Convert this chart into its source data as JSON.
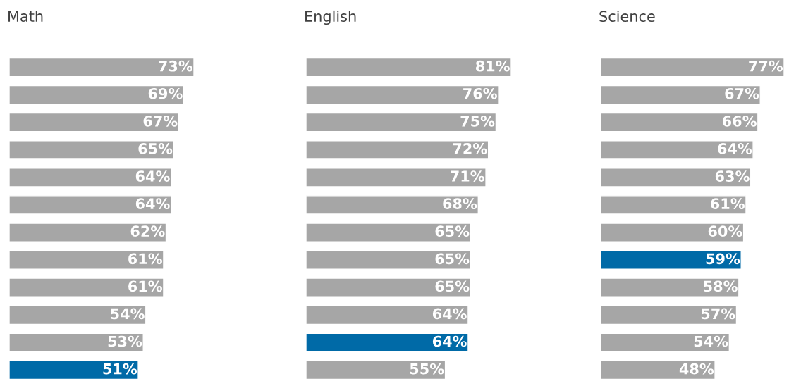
{
  "chart_data": [
    {
      "type": "bar",
      "title": "Math",
      "orientation": "horizontal",
      "data_labels": true,
      "categories": [
        null,
        null,
        null,
        null,
        null,
        null,
        null,
        null,
        null,
        null,
        null,
        null
      ],
      "values": [
        73,
        69,
        67,
        65,
        64,
        64,
        62,
        61,
        61,
        54,
        53,
        51
      ],
      "value_labels": [
        "73%",
        "69%",
        "67%",
        "65%",
        "64%",
        "64%",
        "62%",
        "61%",
        "61%",
        "54%",
        "53%",
        "51%"
      ],
      "colors": [
        "#a6a6a6",
        "#a6a6a6",
        "#a6a6a6",
        "#a6a6a6",
        "#a6a6a6",
        "#a6a6a6",
        "#a6a6a6",
        "#a6a6a6",
        "#a6a6a6",
        "#a6a6a6",
        "#a6a6a6",
        "#006aa7"
      ]
    },
    {
      "type": "bar",
      "title": "English",
      "orientation": "horizontal",
      "data_labels": true,
      "categories": [
        null,
        null,
        null,
        null,
        null,
        null,
        null,
        null,
        null,
        null,
        null,
        null
      ],
      "values": [
        81,
        76,
        75,
        72,
        71,
        68,
        65,
        65,
        65,
        64,
        64,
        55
      ],
      "value_labels": [
        "81%",
        "76%",
        "75%",
        "72%",
        "71%",
        "68%",
        "65%",
        "65%",
        "65%",
        "64%",
        "64%",
        "55%"
      ],
      "colors": [
        "#a6a6a6",
        "#a6a6a6",
        "#a6a6a6",
        "#a6a6a6",
        "#a6a6a6",
        "#a6a6a6",
        "#a6a6a6",
        "#a6a6a6",
        "#a6a6a6",
        "#a6a6a6",
        "#006aa7",
        "#a6a6a6"
      ]
    },
    {
      "type": "bar",
      "title": "Science",
      "orientation": "horizontal",
      "data_labels": true,
      "categories": [
        null,
        null,
        null,
        null,
        null,
        null,
        null,
        null,
        null,
        null,
        null,
        null
      ],
      "values": [
        77,
        67,
        66,
        64,
        63,
        61,
        60,
        59,
        58,
        57,
        54,
        48
      ],
      "value_labels": [
        "77%",
        "67%",
        "66%",
        "64%",
        "63%",
        "61%",
        "60%",
        "59%",
        "58%",
        "57%",
        "54%",
        "48%"
      ],
      "colors": [
        "#a6a6a6",
        "#a6a6a6",
        "#a6a6a6",
        "#a6a6a6",
        "#a6a6a6",
        "#a6a6a6",
        "#a6a6a6",
        "#006aa7",
        "#a6a6a6",
        "#a6a6a6",
        "#a6a6a6",
        "#a6a6a6"
      ]
    }
  ]
}
